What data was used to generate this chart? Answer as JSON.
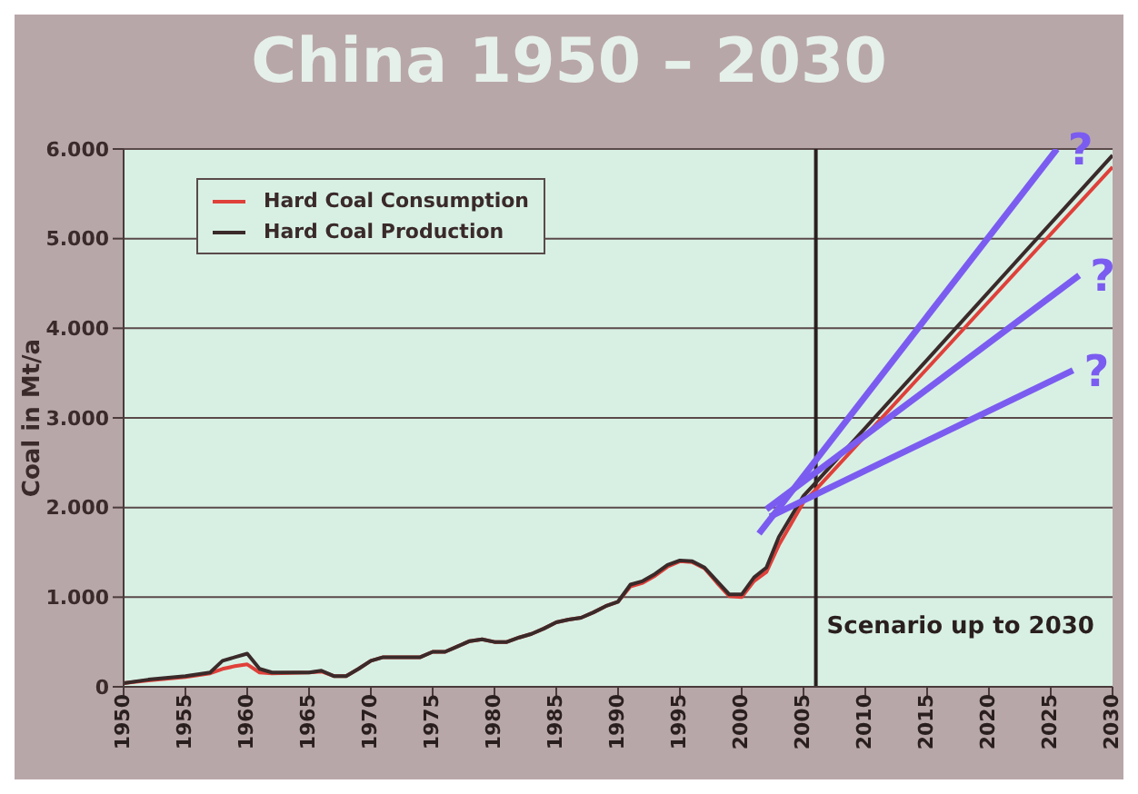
{
  "chart_data": {
    "type": "line",
    "title": "China 1950 – 2030",
    "ylabel": "Coal in Mt/a",
    "xlim": [
      1950,
      2030
    ],
    "xticks": [
      1950,
      1955,
      1960,
      1965,
      1970,
      1975,
      1980,
      1985,
      1990,
      1995,
      2000,
      2005,
      2010,
      2015,
      2020,
      2025,
      2030
    ],
    "ylim": [
      0,
      6000
    ],
    "yticks": [
      {
        "value": 0,
        "label": "0"
      },
      {
        "value": 1000,
        "label": "1.000"
      },
      {
        "value": 2000,
        "label": "2.000"
      },
      {
        "value": 3000,
        "label": "3.000"
      },
      {
        "value": 4000,
        "label": "4.000"
      },
      {
        "value": 5000,
        "label": "5.000"
      },
      {
        "value": 6000,
        "label": "6.000"
      }
    ],
    "grid": "y",
    "legend": "top left",
    "marker": "none",
    "series": [
      {
        "name": "Hard Coal Consumption",
        "color": "#e0403a",
        "x": [
          1950,
          1952,
          1955,
          1957,
          1958,
          1959,
          1960,
          1961,
          1962,
          1965,
          1966,
          1967,
          1968,
          1969,
          1970,
          1971,
          1972,
          1974,
          1975,
          1976,
          1977,
          1978,
          1979,
          1980,
          1981,
          1982,
          1983,
          1984,
          1985,
          1986,
          1987,
          1988,
          1989,
          1990,
          1991,
          1992,
          1993,
          1994,
          1995,
          1996,
          1997,
          1998,
          1999,
          2000,
          2001,
          2002,
          2003,
          2004,
          2005,
          2006,
          2030
        ],
        "values": [
          40,
          70,
          110,
          150,
          200,
          230,
          250,
          160,
          150,
          160,
          170,
          120,
          120,
          200,
          290,
          330,
          330,
          330,
          390,
          390,
          450,
          510,
          530,
          500,
          500,
          550,
          590,
          650,
          720,
          750,
          770,
          830,
          900,
          950,
          1120,
          1160,
          1240,
          1340,
          1400,
          1390,
          1320,
          1160,
          1010,
          1000,
          1180,
          1280,
          1580,
          1820,
          2060,
          2200,
          5800
        ]
      },
      {
        "name": "Hard Coal Production",
        "color": "#3a2a2a",
        "x": [
          1950,
          1952,
          1955,
          1957,
          1958,
          1959,
          1960,
          1961,
          1962,
          1965,
          1966,
          1967,
          1968,
          1969,
          1970,
          1971,
          1972,
          1974,
          1975,
          1976,
          1977,
          1978,
          1979,
          1980,
          1981,
          1982,
          1983,
          1984,
          1985,
          1986,
          1987,
          1988,
          1989,
          1990,
          1991,
          1992,
          1993,
          1994,
          1995,
          1996,
          1997,
          1998,
          1999,
          2000,
          2001,
          2002,
          2003,
          2004,
          2005,
          2006,
          2030
        ],
        "values": [
          40,
          80,
          120,
          160,
          290,
          330,
          370,
          200,
          160,
          160,
          180,
          120,
          120,
          200,
          290,
          330,
          330,
          330,
          390,
          390,
          450,
          510,
          530,
          500,
          500,
          550,
          590,
          650,
          720,
          750,
          770,
          830,
          900,
          950,
          1140,
          1180,
          1260,
          1360,
          1410,
          1400,
          1330,
          1180,
          1030,
          1030,
          1220,
          1330,
          1670,
          1900,
          2130,
          2280,
          5930
        ]
      },
      {
        "type": "line",
        "color": "#7b5cf0",
        "x": [
          2001.4,
          2025.5
        ],
        "values": [
          1710,
          6000
        ]
      },
      {
        "type": "line",
        "color": "#7b5cf0",
        "x": [
          2002.0,
          2027.3
        ],
        "values": [
          1980,
          4590
        ]
      },
      {
        "type": "line",
        "color": "#7b5cf0",
        "x": [
          2002.3,
          2026.8
        ],
        "values": [
          1900,
          3530
        ]
      }
    ],
    "ref_lines": [
      {
        "axis": "x",
        "value": 2006,
        "label": "Scenario up to 2030",
        "color": "#2a1f1f"
      }
    ],
    "annotations": [
      "?",
      "?",
      "?"
    ]
  }
}
